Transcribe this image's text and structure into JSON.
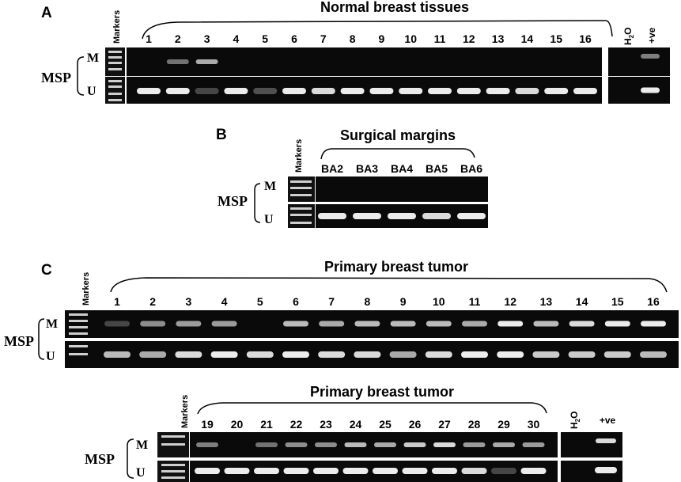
{
  "panel_a": {
    "letter": "A",
    "markers": "Markers",
    "title": "Normal breast tissues",
    "lanes": [
      "1",
      "2",
      "3",
      "4",
      "5",
      "6",
      "7",
      "8",
      "9",
      "10",
      "11",
      "12",
      "13",
      "14",
      "15",
      "16"
    ],
    "water": "H",
    "water_sub": "2",
    "water_tail": "O",
    "positive": "+ve",
    "assay": "MSP",
    "row_m": "M",
    "row_u": "U",
    "m_intensity": [
      0,
      0.55,
      0.75,
      0,
      0,
      0,
      0,
      0,
      0,
      0,
      0,
      0,
      0,
      0,
      0,
      0
    ],
    "u_intensity": [
      0.95,
      0.95,
      0.35,
      0.95,
      0.4,
      0.95,
      0.9,
      0.95,
      0.95,
      0.95,
      0.95,
      0.95,
      0.95,
      0.9,
      0.95,
      0.95
    ],
    "ctrl_m": [
      0,
      0.6
    ],
    "ctrl_u": [
      0,
      0.95
    ]
  },
  "panel_b": {
    "letter": "B",
    "markers": "Markers",
    "title": "Surgical margins",
    "lanes": [
      "BA2",
      "BA3",
      "BA4",
      "BA5",
      "BA6"
    ],
    "assay": "MSP",
    "row_m": "M",
    "row_u": "U",
    "m_intensity": [
      0,
      0,
      0,
      0,
      0
    ],
    "u_intensity": [
      0.95,
      0.95,
      0.95,
      0.9,
      0.95
    ]
  },
  "panel_c": {
    "letter": "C",
    "markers": "Markers",
    "title": "Primary breast tumor",
    "lanes": [
      "1",
      "2",
      "3",
      "4",
      "5",
      "6",
      "7",
      "8",
      "9",
      "10",
      "11",
      "12",
      "13",
      "14",
      "15",
      "16"
    ],
    "assay": "MSP",
    "row_m": "M",
    "row_u": "U",
    "m_intensity": [
      0.35,
      0.65,
      0.7,
      0.7,
      0,
      0.8,
      0.75,
      0.8,
      0.8,
      0.8,
      0.75,
      0.95,
      0.8,
      0.9,
      0.95,
      0.95
    ],
    "u_intensity": [
      0.8,
      0.75,
      0.9,
      0.95,
      0.9,
      0.95,
      0.9,
      0.9,
      0.75,
      0.9,
      0.95,
      0.95,
      0.85,
      0.85,
      0.85,
      0.8
    ]
  },
  "panel_c2": {
    "markers": "Markers",
    "title": "Primary breast tumor",
    "lanes": [
      "19",
      "20",
      "21",
      "22",
      "23",
      "24",
      "25",
      "26",
      "27",
      "28",
      "29",
      "30"
    ],
    "water": "H",
    "water_sub": "2",
    "water_tail": "O",
    "positive": "+ve",
    "assay": "MSP",
    "row_m": "M",
    "row_u": "U",
    "m_intensity": [
      0.6,
      0,
      0.55,
      0.65,
      0.65,
      0.8,
      0.75,
      0.85,
      0.9,
      0.7,
      0.75,
      0.7
    ],
    "u_intensity": [
      0.95,
      0.95,
      0.95,
      0.95,
      0.95,
      0.95,
      0.95,
      0.95,
      0.95,
      0.9,
      0.35,
      0.95
    ],
    "ctrl_m": [
      0,
      0.9
    ],
    "ctrl_u": [
      0,
      0.95
    ]
  }
}
